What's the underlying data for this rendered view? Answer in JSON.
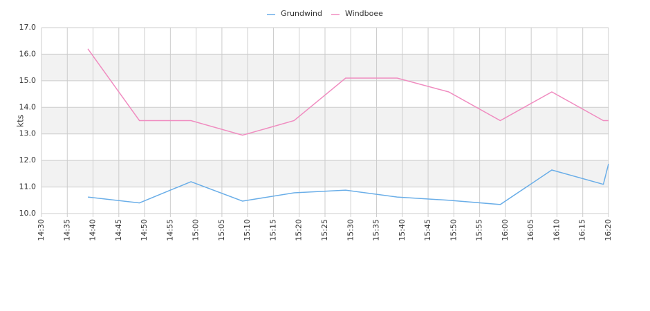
{
  "chart_data": {
    "type": "line",
    "y_label": "kts",
    "x": [
      "14:39",
      "14:49",
      "14:59",
      "15:09",
      "15:19",
      "15:29",
      "15:39",
      "15:49",
      "15:59",
      "16:09",
      "16:19",
      "16:20"
    ],
    "series": [
      {
        "name": "Grundwind",
        "color": "#6aaee8",
        "values": [
          10.62,
          10.4,
          11.2,
          10.47,
          10.78,
          10.88,
          10.62,
          10.5,
          10.34,
          11.64,
          11.1,
          11.87
        ]
      },
      {
        "name": "Windboee",
        "color": "#f08cc0",
        "values": [
          16.2,
          13.5,
          13.5,
          12.95,
          13.5,
          15.1,
          15.1,
          14.58,
          13.5,
          14.58,
          13.5,
          13.5
        ]
      }
    ],
    "xlim": [
      "14:30",
      "16:20"
    ],
    "xticks": [
      "14:30",
      "14:35",
      "14:40",
      "14:45",
      "14:50",
      "14:55",
      "15:00",
      "15:05",
      "15:10",
      "15:15",
      "15:20",
      "15:25",
      "15:30",
      "15:35",
      "15:40",
      "15:45",
      "15:50",
      "15:55",
      "16:00",
      "16:05",
      "16:10",
      "16:15",
      "16:20"
    ],
    "ylim": [
      10,
      17
    ],
    "yticks": [
      {
        "value": 10,
        "label": "10.0"
      },
      {
        "value": 11,
        "label": "11.0"
      },
      {
        "value": 12,
        "label": "12.0"
      },
      {
        "value": 13,
        "label": "13.0"
      },
      {
        "value": 14,
        "label": "14.0"
      },
      {
        "value": 15,
        "label": "15.0"
      },
      {
        "value": 16,
        "label": "16.0"
      },
      {
        "value": 17,
        "label": "17.0"
      }
    ],
    "grid": true,
    "band_color": "#f2f2f2",
    "legend": "top"
  }
}
